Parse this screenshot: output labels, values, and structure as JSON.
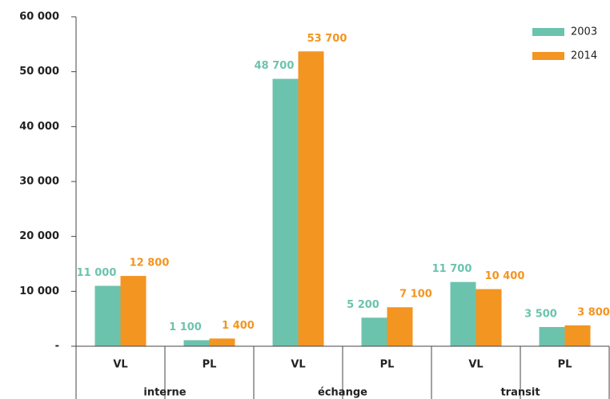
{
  "chart_data": {
    "type": "bar",
    "categories": [
      "VL",
      "PL",
      "VL",
      "PL",
      "VL",
      "PL"
    ],
    "groups": [
      "interne",
      "échange",
      "transit"
    ],
    "series": [
      {
        "name": "2003",
        "color": "#6cc3ad",
        "values": [
          11000,
          1100,
          48700,
          5200,
          11700,
          3500
        ],
        "value_labels": [
          "11 000",
          "1 100",
          "48 700",
          "5 200",
          "11 700",
          "3 500"
        ]
      },
      {
        "name": "2014",
        "color": "#f39521",
        "values": [
          12800,
          1400,
          53700,
          7100,
          10400,
          3800
        ],
        "value_labels": [
          "12 800",
          "1 400",
          "53 700",
          "7 100",
          "10 400",
          "3 800"
        ]
      }
    ],
    "ylim": [
      0,
      60000
    ],
    "yticks": [
      {
        "value": 0,
        "label": "-"
      },
      {
        "value": 10000,
        "label": "10 000"
      },
      {
        "value": 20000,
        "label": "20 000"
      },
      {
        "value": 30000,
        "label": "30 000"
      },
      {
        "value": 40000,
        "label": "40 000"
      },
      {
        "value": 50000,
        "label": "50 000"
      },
      {
        "value": 60000,
        "label": "60 000"
      }
    ],
    "legend": "top-right"
  }
}
